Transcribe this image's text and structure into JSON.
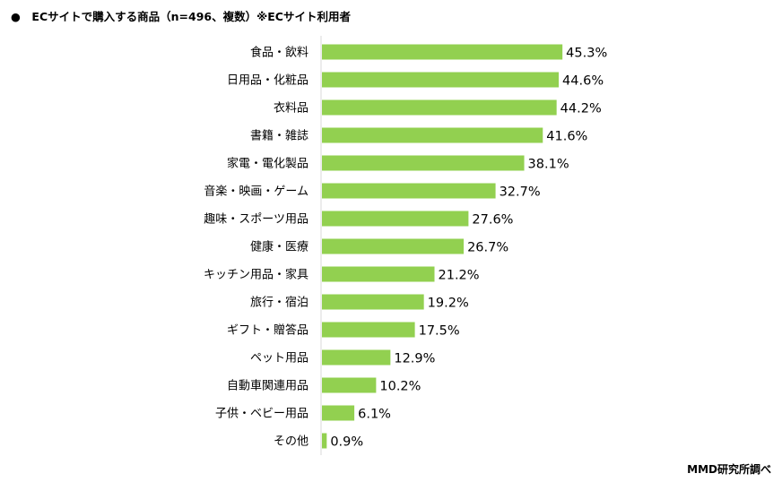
{
  "title": "●　ECサイトで購入する商品（n=496、複数）※ECサイト利用者",
  "source": "MMD研究所調べ",
  "chart_data": {
    "type": "bar",
    "orientation": "horizontal",
    "categories": [
      "食品・飲料",
      "日用品・化粧品",
      "衣料品",
      "書籍・雑誌",
      "家電・電化製品",
      "音楽・映画・ゲーム",
      "趣味・スポーツ用品",
      "健康・医療",
      "キッチン用品・家具",
      "旅行・宿泊",
      "ギフト・贈答品",
      "ペット用品",
      "自動車関連用品",
      "子供・ベビー用品",
      "その他"
    ],
    "values": [
      45.3,
      44.6,
      44.2,
      41.6,
      38.1,
      32.7,
      27.6,
      26.7,
      21.2,
      19.2,
      17.5,
      12.9,
      10.2,
      6.1,
      0.9
    ],
    "value_suffix": "%",
    "bar_color": "#92d050",
    "grid": false
  }
}
